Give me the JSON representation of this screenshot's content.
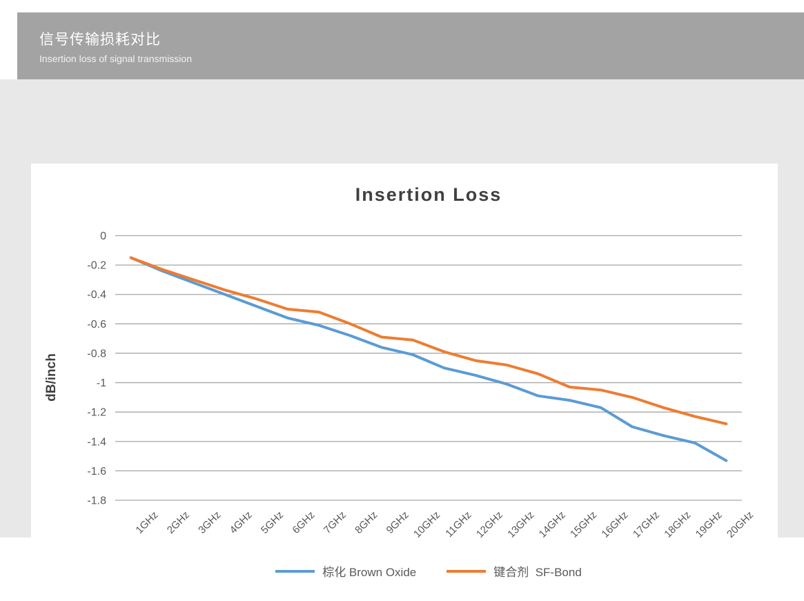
{
  "page": {
    "header": {
      "title_zh": "信号传输损耗对比",
      "subtitle_en": "Insertion loss of signal transmission"
    },
    "colors": {
      "header_bg": "#a3a3a3",
      "canvas_bg": "#e8e8e8",
      "card_bg": "#ffffff",
      "grid": "#a6a6a6",
      "axis_text": "#595959",
      "title_text": "#404040"
    }
  },
  "chart_data": {
    "type": "line",
    "title": "Insertion Loss",
    "ylabel": "dB/inch",
    "xlabel": "",
    "ylim": [
      -1.8,
      0
    ],
    "y_ticks": [
      "0",
      "-0.2",
      "-0.4",
      "-0.6",
      "-0.8",
      "-1",
      "-1.2",
      "-1.4",
      "-1.6",
      "-1.8"
    ],
    "grid": "horizontal",
    "legend_position": "bottom",
    "categories": [
      "1GHz",
      "2GHz",
      "3GHz",
      "4GHz",
      "5GHz",
      "6GHz",
      "7GHz",
      "8GHz",
      "9GHz",
      "10GHz",
      "11GHz",
      "12GHz",
      "13GHz",
      "14GHz",
      "15GHz",
      "16GHz",
      "17GHz",
      "18GHz",
      "19GHz",
      "20GHz"
    ],
    "series": [
      {
        "name": "棕化 Brown Oxide",
        "color": "#5b9bd5",
        "values": [
          -0.15,
          -0.24,
          -0.32,
          -0.4,
          -0.48,
          -0.56,
          -0.61,
          -0.68,
          -0.76,
          -0.81,
          -0.9,
          -0.95,
          -1.01,
          -1.09,
          -1.12,
          -1.17,
          -1.3,
          -1.36,
          -1.41,
          -1.53
        ]
      },
      {
        "name": "键合剂  SF-Bond",
        "color": "#ed7d31",
        "values": [
          -0.15,
          -0.23,
          -0.3,
          -0.37,
          -0.43,
          -0.5,
          -0.52,
          -0.6,
          -0.69,
          -0.71,
          -0.79,
          -0.85,
          -0.88,
          -0.94,
          -1.03,
          -1.05,
          -1.1,
          -1.17,
          -1.23,
          -1.28
        ]
      }
    ]
  }
}
